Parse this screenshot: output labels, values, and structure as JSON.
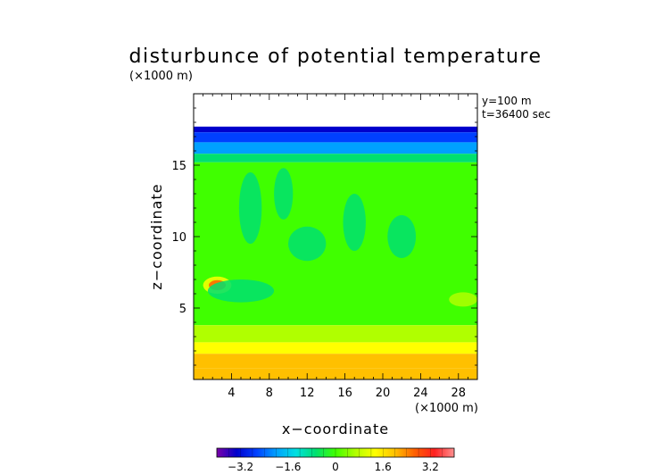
{
  "chart_data": {
    "type": "heatmap",
    "title": "disturbunce of potential temperature",
    "x_scale_label": "(×1000 m)",
    "z_scale_label": "(×1000 m)",
    "xlabel": "x−coordinate",
    "ylabel": "z−coordinate",
    "annotations": [
      "y=100 m",
      "t=36400 sec"
    ],
    "xlim": [
      0,
      30
    ],
    "ylim": [
      0,
      20
    ],
    "x_ticks": [
      4,
      8,
      12,
      16,
      20,
      24,
      28
    ],
    "y_ticks": [
      5,
      10,
      15
    ],
    "colorbar": {
      "range": [
        -4,
        4
      ],
      "ticks": [
        -3.2,
        -1.6,
        0,
        1.6,
        3.2
      ],
      "tick_labels": [
        "−3.2",
        "−1.6",
        "0",
        "1.6",
        "3.2"
      ],
      "colors": [
        "#7a00a8",
        "#0000cc",
        "#0040ff",
        "#00a0ff",
        "#00e0e0",
        "#00e070",
        "#40ff00",
        "#b0ff00",
        "#ffff00",
        "#ffc000",
        "#ff6000",
        "#ff2020",
        "#ff9090"
      ]
    },
    "bands": [
      {
        "z_from": 17.7,
        "z_to": 20.0,
        "value": null
      },
      {
        "z_from": 17.3,
        "z_to": 17.7,
        "value": -3.6
      },
      {
        "z_from": 16.6,
        "z_to": 17.3,
        "value": -2.8
      },
      {
        "z_from": 15.8,
        "z_to": 16.6,
        "value": -1.8
      },
      {
        "z_from": 15.2,
        "z_to": 15.8,
        "value": -0.8
      },
      {
        "z_from": 3.8,
        "z_to": 15.2,
        "value": 0.0
      },
      {
        "z_from": 2.6,
        "z_to": 3.8,
        "value": 0.6
      },
      {
        "z_from": 1.8,
        "z_to": 2.6,
        "value": 1.2
      },
      {
        "z_from": 0.8,
        "z_to": 1.8,
        "value": 1.8
      },
      {
        "z_from": 0.0,
        "z_to": 0.8,
        "value": 2.2
      }
    ],
    "anomalies": [
      {
        "x": 2.5,
        "z": 6.6,
        "rx": 1.5,
        "rz": 0.6,
        "value": 1.6
      },
      {
        "x": 2.5,
        "z": 6.6,
        "rx": 0.9,
        "rz": 0.35,
        "value": 2.8
      },
      {
        "x": 5.0,
        "z": 6.2,
        "rx": 3.5,
        "rz": 0.8,
        "value": -0.6
      },
      {
        "x": 12.0,
        "z": 9.5,
        "rx": 2.0,
        "rz": 1.2,
        "value": -0.6
      },
      {
        "x": 17.0,
        "z": 11.0,
        "rx": 1.2,
        "rz": 2.0,
        "value": -0.6
      },
      {
        "x": 22.0,
        "z": 10.0,
        "rx": 1.5,
        "rz": 1.5,
        "value": -0.6
      },
      {
        "x": 6.0,
        "z": 12.0,
        "rx": 1.2,
        "rz": 2.5,
        "value": -0.4
      },
      {
        "x": 9.5,
        "z": 13.0,
        "rx": 1.0,
        "rz": 1.8,
        "value": -0.4
      },
      {
        "x": 28.5,
        "z": 5.6,
        "rx": 1.5,
        "rz": 0.5,
        "value": 0.4
      }
    ]
  }
}
